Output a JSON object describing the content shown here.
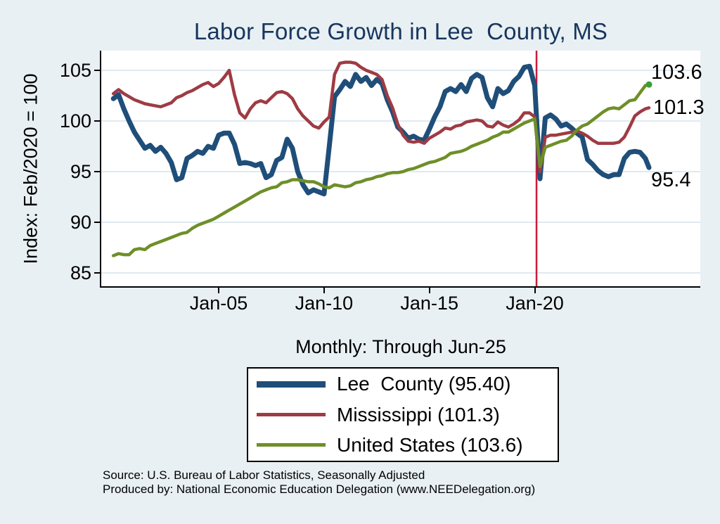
{
  "title": "Labor Force Growth in Lee  County, MS",
  "subtitle": "Monthly: Through Jun-25",
  "source": {
    "line1": "Source: U.S. Bureau of Labor Statistics, Seasonally Adjusted",
    "line2": "Produced by: National Economic Education Delegation (www.NEEDelegation.org)"
  },
  "colors": {
    "page_bg": "#e9f0f3",
    "plot_bg": "#ffffff",
    "title": "#17365d",
    "grid": "#dfeaf0",
    "axis": "#000000",
    "text": "#000000",
    "lee": "#1f4e79",
    "ms": "#9e3b44",
    "us": "#6e8f28",
    "vline": "#cc1b3c",
    "end_dot": "#36a035"
  },
  "legend": {
    "items": [
      {
        "key": "lee",
        "label": "Lee  County (95.40)"
      },
      {
        "key": "ms",
        "label": "Mississippi (101.3)"
      },
      {
        "key": "us",
        "label": "United States (103.6)"
      }
    ]
  },
  "end_labels": [
    {
      "key": "us",
      "text": "103.6"
    },
    {
      "key": "ms",
      "text": "101.3"
    },
    {
      "key": "lee",
      "text": "95.4"
    }
  ],
  "chart_data": {
    "type": "line",
    "title": "Labor Force Growth in Lee  County, MS",
    "xlabel": "Monthly: Through Jun-25",
    "ylabel": "Index: Feb/2020 = 100",
    "grid": "horizontal-only",
    "legend_position": "below-plot",
    "x_start": 2000.0,
    "x_step": 0.25,
    "x_final": 2025.42,
    "x_range": [
      1999.43,
      2027.86
    ],
    "y_range": [
      83.7,
      106.9
    ],
    "y_axis": {
      "label": "Index: Feb/2020 = 100",
      "ticks": [
        85,
        90,
        95,
        100,
        105
      ]
    },
    "x_axis": {
      "ticks": [
        {
          "x": 2005,
          "label": "Jan-05"
        },
        {
          "x": 2010,
          "label": "Jan-10"
        },
        {
          "x": 2015,
          "label": "Jan-15"
        },
        {
          "x": 2020,
          "label": "Jan-20"
        }
      ]
    },
    "vline": {
      "x": 2020.083
    },
    "series": [
      {
        "name": "Lee  County",
        "key": "lee",
        "final_value": 95.4,
        "end_marker": false,
        "values": [
          102.2,
          102.6,
          101.2,
          100.0,
          98.9,
          98.1,
          97.3,
          97.6,
          97.0,
          97.4,
          96.8,
          95.9,
          94.2,
          94.4,
          96.3,
          96.6,
          97.0,
          96.8,
          97.5,
          97.3,
          98.6,
          98.8,
          98.8,
          97.7,
          95.8,
          95.9,
          95.8,
          95.6,
          95.8,
          94.4,
          94.7,
          96.1,
          96.4,
          98.2,
          97.3,
          95.0,
          93.7,
          92.9,
          93.2,
          93.0,
          92.8,
          97.5,
          102.4,
          103.1,
          103.9,
          103.4,
          104.6,
          103.9,
          104.3,
          103.5,
          104.1,
          103.7,
          102.1,
          100.9,
          99.4,
          98.9,
          98.3,
          98.5,
          98.2,
          98.1,
          99.2,
          100.4,
          101.4,
          102.9,
          103.2,
          102.9,
          103.6,
          102.9,
          104.2,
          104.6,
          104.3,
          102.3,
          101.4,
          103.2,
          102.7,
          103.0,
          103.9,
          104.4,
          105.3,
          105.4,
          103.5,
          94.3,
          100.3,
          100.6,
          100.2,
          99.5,
          99.7,
          99.3,
          98.8,
          98.4,
          96.2,
          95.7,
          95.1,
          94.7,
          94.5,
          94.7,
          94.7,
          96.3,
          96.9,
          97.0,
          96.9,
          96.3,
          95.4
        ]
      },
      {
        "name": "Mississippi",
        "key": "ms",
        "final_value": 101.3,
        "end_marker": false,
        "values": [
          102.7,
          103.1,
          102.7,
          102.4,
          102.1,
          101.9,
          101.7,
          101.6,
          101.5,
          101.4,
          101.6,
          101.8,
          102.3,
          102.5,
          102.8,
          103.0,
          103.3,
          103.6,
          103.8,
          103.4,
          103.7,
          104.3,
          105.0,
          102.6,
          100.8,
          100.3,
          101.2,
          101.8,
          102.0,
          101.8,
          102.3,
          102.8,
          102.9,
          102.7,
          102.2,
          101.2,
          100.5,
          100.0,
          99.5,
          99.3,
          99.9,
          100.4,
          104.6,
          105.7,
          105.8,
          105.8,
          105.7,
          105.3,
          105.0,
          104.8,
          104.6,
          104.1,
          102.5,
          101.3,
          99.7,
          98.6,
          98.0,
          97.9,
          98.0,
          97.8,
          98.3,
          98.6,
          98.9,
          99.3,
          99.2,
          99.5,
          99.6,
          99.9,
          100.0,
          100.1,
          100.0,
          99.5,
          99.4,
          99.9,
          99.6,
          99.4,
          99.7,
          100.1,
          100.8,
          100.8,
          100.4,
          95.0,
          98.4,
          98.6,
          98.6,
          98.7,
          98.8,
          98.9,
          99.0,
          98.8,
          98.5,
          98.1,
          97.8,
          97.8,
          97.8,
          97.8,
          97.9,
          98.4,
          99.4,
          100.5,
          100.9,
          101.2,
          101.3
        ]
      },
      {
        "name": "United States",
        "key": "us",
        "final_value": 103.6,
        "end_marker": true,
        "values": [
          86.7,
          86.9,
          86.8,
          86.8,
          87.3,
          87.4,
          87.3,
          87.7,
          87.9,
          88.1,
          88.3,
          88.5,
          88.7,
          88.9,
          89.0,
          89.4,
          89.7,
          89.9,
          90.1,
          90.3,
          90.6,
          90.9,
          91.2,
          91.5,
          91.8,
          92.1,
          92.4,
          92.7,
          93.0,
          93.2,
          93.4,
          93.5,
          93.9,
          94.0,
          94.2,
          94.2,
          94.1,
          94.0,
          94.0,
          93.8,
          93.5,
          93.4,
          93.7,
          93.6,
          93.5,
          93.6,
          93.9,
          94.0,
          94.2,
          94.3,
          94.5,
          94.6,
          94.8,
          94.9,
          94.9,
          95.0,
          95.2,
          95.3,
          95.5,
          95.7,
          95.9,
          96.0,
          96.2,
          96.4,
          96.8,
          96.9,
          97.0,
          97.2,
          97.5,
          97.7,
          97.9,
          98.1,
          98.4,
          98.6,
          98.9,
          98.9,
          99.2,
          99.5,
          99.8,
          100.0,
          100.2,
          95.5,
          97.4,
          97.6,
          97.8,
          98.0,
          98.1,
          98.5,
          99.1,
          99.5,
          99.7,
          100.1,
          100.5,
          100.9,
          101.2,
          101.3,
          101.2,
          101.6,
          102.0,
          102.1,
          102.8,
          103.5,
          103.6
        ]
      }
    ]
  }
}
